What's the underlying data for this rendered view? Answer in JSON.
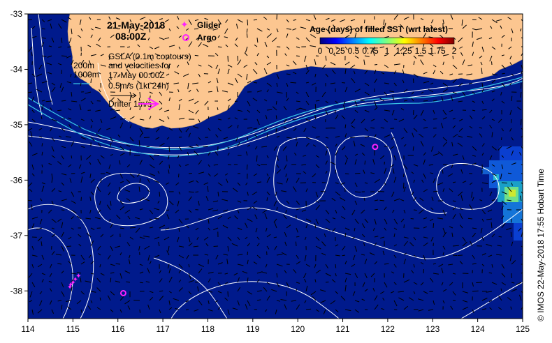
{
  "map": {
    "date": "21-May-2018",
    "time": "08:00Z",
    "legend_glider": "Glider",
    "legend_argo": "Argo",
    "depth_200": "200m",
    "depth_1000": "1000m",
    "gsla_line1": "GSLA (0.1m contours)",
    "gsla_line2": "and velocities for",
    "gsla_line3": "17-May 00:00Z",
    "gsla_line4": "0.5m/s (1kt 24h)",
    "drifter_label": "Drifter 1m/s",
    "sst_title": "Age (days) of filled SST (wrt latest)",
    "colorbar_ticks": [
      "0",
      "0.25",
      "0.5",
      "0.75",
      "1",
      "1.25",
      "1.5",
      "1.75",
      "2"
    ],
    "x_ticks": [
      "114",
      "115",
      "116",
      "117",
      "118",
      "119",
      "120",
      "121",
      "122",
      "123",
      "124",
      "125"
    ],
    "y_ticks": [
      "-33",
      "-34",
      "-35",
      "-36",
      "-37",
      "-38"
    ],
    "credit": "© IMOS 22-May-2018 17:55 Hobart Time"
  },
  "colors": {
    "ocean": "#001a8c",
    "land": "#fcc690",
    "contour": "#ffffff",
    "isobath": "#39c6e6",
    "marker": "#ff22ff",
    "arrow": "#000000"
  },
  "axes": {
    "lon_range": [
      114,
      125
    ],
    "lat_range": [
      -38.5,
      -33
    ]
  },
  "markers": {
    "glider_track": [
      [
        115.12,
        -37.72
      ],
      [
        115.05,
        -37.78
      ],
      [
        115.0,
        -37.84
      ],
      [
        114.95,
        -37.88
      ],
      [
        114.93,
        -37.92
      ]
    ],
    "argo": [
      [
        121.72,
        -35.4
      ],
      [
        116.12,
        -38.04
      ]
    ]
  }
}
